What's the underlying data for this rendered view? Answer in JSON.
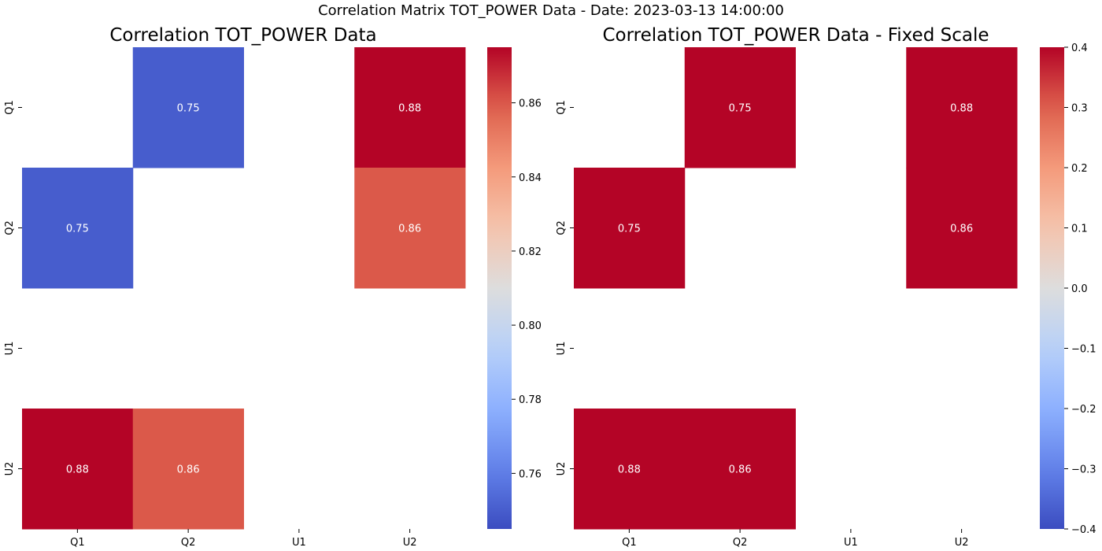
{
  "figure": {
    "suptitle": "Correlation Matrix TOT_POWER Data - Date: 2023-03-13 14:00:00",
    "colormap": "coolwarm",
    "background": "#ffffff"
  },
  "chart_data": [
    {
      "type": "heatmap",
      "title": "Correlation TOT_POWER Data",
      "x_labels": [
        "Q1",
        "Q2",
        "U1",
        "U2"
      ],
      "y_labels": [
        "Q1",
        "Q2",
        "U1",
        "U2"
      ],
      "values": [
        [
          null,
          0.75,
          null,
          0.88
        ],
        [
          0.75,
          null,
          null,
          0.86
        ],
        [
          null,
          null,
          null,
          null
        ],
        [
          0.88,
          0.86,
          null,
          null
        ]
      ],
      "annotations": [
        [
          null,
          "0.75",
          null,
          "0.88"
        ],
        [
          "0.75",
          null,
          null,
          "0.86"
        ],
        [
          null,
          null,
          null,
          null
        ],
        [
          "0.88",
          "0.86",
          null,
          null
        ]
      ],
      "color_range": [
        0.745,
        0.875
      ],
      "colorbar_ticks": [
        0.76,
        0.78,
        0.8,
        0.82,
        0.84,
        0.86
      ],
      "colorbar_tick_labels": [
        "0.76",
        "0.78",
        "0.80",
        "0.82",
        "0.84",
        "0.86"
      ],
      "xlabel": "",
      "ylabel": ""
    },
    {
      "type": "heatmap",
      "title": "Correlation TOT_POWER Data - Fixed Scale",
      "x_labels": [
        "Q1",
        "Q2",
        "U1",
        "U2"
      ],
      "y_labels": [
        "Q1",
        "Q2",
        "U1",
        "U2"
      ],
      "values": [
        [
          null,
          0.75,
          null,
          0.88
        ],
        [
          0.75,
          null,
          null,
          0.86
        ],
        [
          null,
          null,
          null,
          null
        ],
        [
          0.88,
          0.86,
          null,
          null
        ]
      ],
      "annotations": [
        [
          null,
          "0.75",
          null,
          "0.88"
        ],
        [
          "0.75",
          null,
          null,
          "0.86"
        ],
        [
          null,
          null,
          null,
          null
        ],
        [
          "0.88",
          "0.86",
          null,
          null
        ]
      ],
      "color_range": [
        -0.4,
        0.4
      ],
      "colorbar_ticks": [
        -0.4,
        -0.3,
        -0.2,
        -0.1,
        0.0,
        0.1,
        0.2,
        0.3,
        0.4
      ],
      "colorbar_tick_labels": [
        "−0.4",
        "−0.3",
        "−0.2",
        "−0.1",
        "0.0",
        "0.1",
        "0.2",
        "0.3",
        "0.4"
      ],
      "xlabel": "",
      "ylabel": ""
    }
  ]
}
